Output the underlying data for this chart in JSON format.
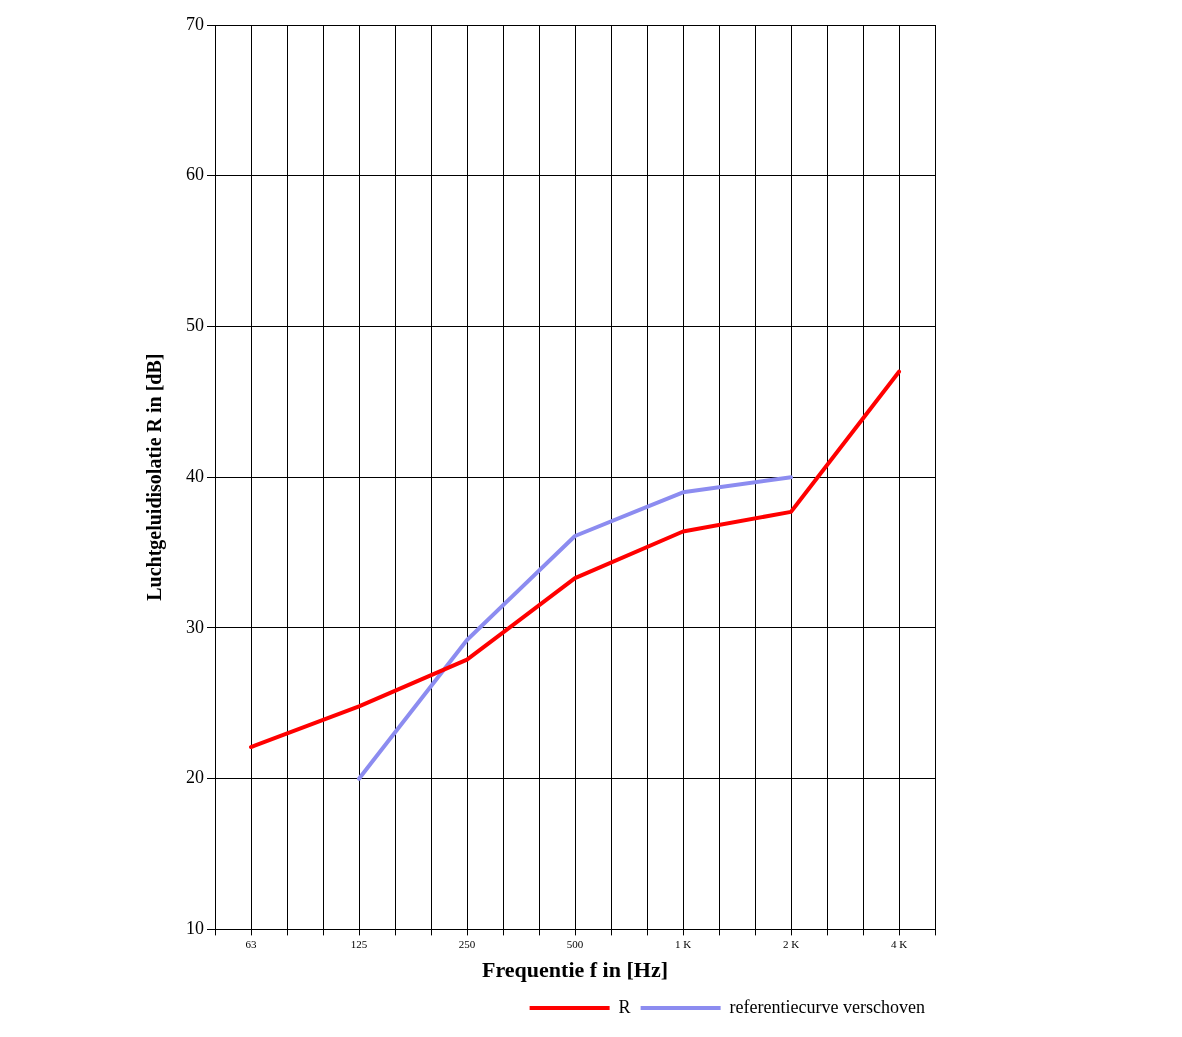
{
  "chart_data": {
    "type": "line",
    "xlabel": "Frequentie f in [Hz]",
    "ylabel": "Luchtgeluidisolatie R in [dB]",
    "categories": [
      null,
      "63",
      null,
      null,
      "125",
      null,
      null,
      "250",
      null,
      null,
      "500",
      null,
      null,
      "1 K",
      null,
      null,
      "2 K",
      null,
      null,
      "4 K",
      null
    ],
    "series": [
      {
        "name": "R",
        "color": "#ff0000",
        "values": [
          null,
          22.1,
          null,
          null,
          24.8,
          null,
          null,
          27.9,
          null,
          null,
          33.3,
          null,
          null,
          36.4,
          null,
          null,
          37.7,
          null,
          null,
          47,
          null
        ]
      },
      {
        "name": "referentiecurve verschoven",
        "color": "#8c8cf0",
        "values": [
          null,
          null,
          null,
          null,
          20,
          null,
          null,
          29.2,
          null,
          null,
          36.1,
          null,
          null,
          39,
          null,
          null,
          40,
          null,
          null,
          null,
          null
        ]
      }
    ],
    "ylim": [
      10,
      70
    ],
    "yticks": [
      10,
      20,
      30,
      40,
      50,
      60,
      70
    ],
    "grid": true,
    "legend": "bottom right",
    "marker": "none",
    "line_style": "solid"
  }
}
